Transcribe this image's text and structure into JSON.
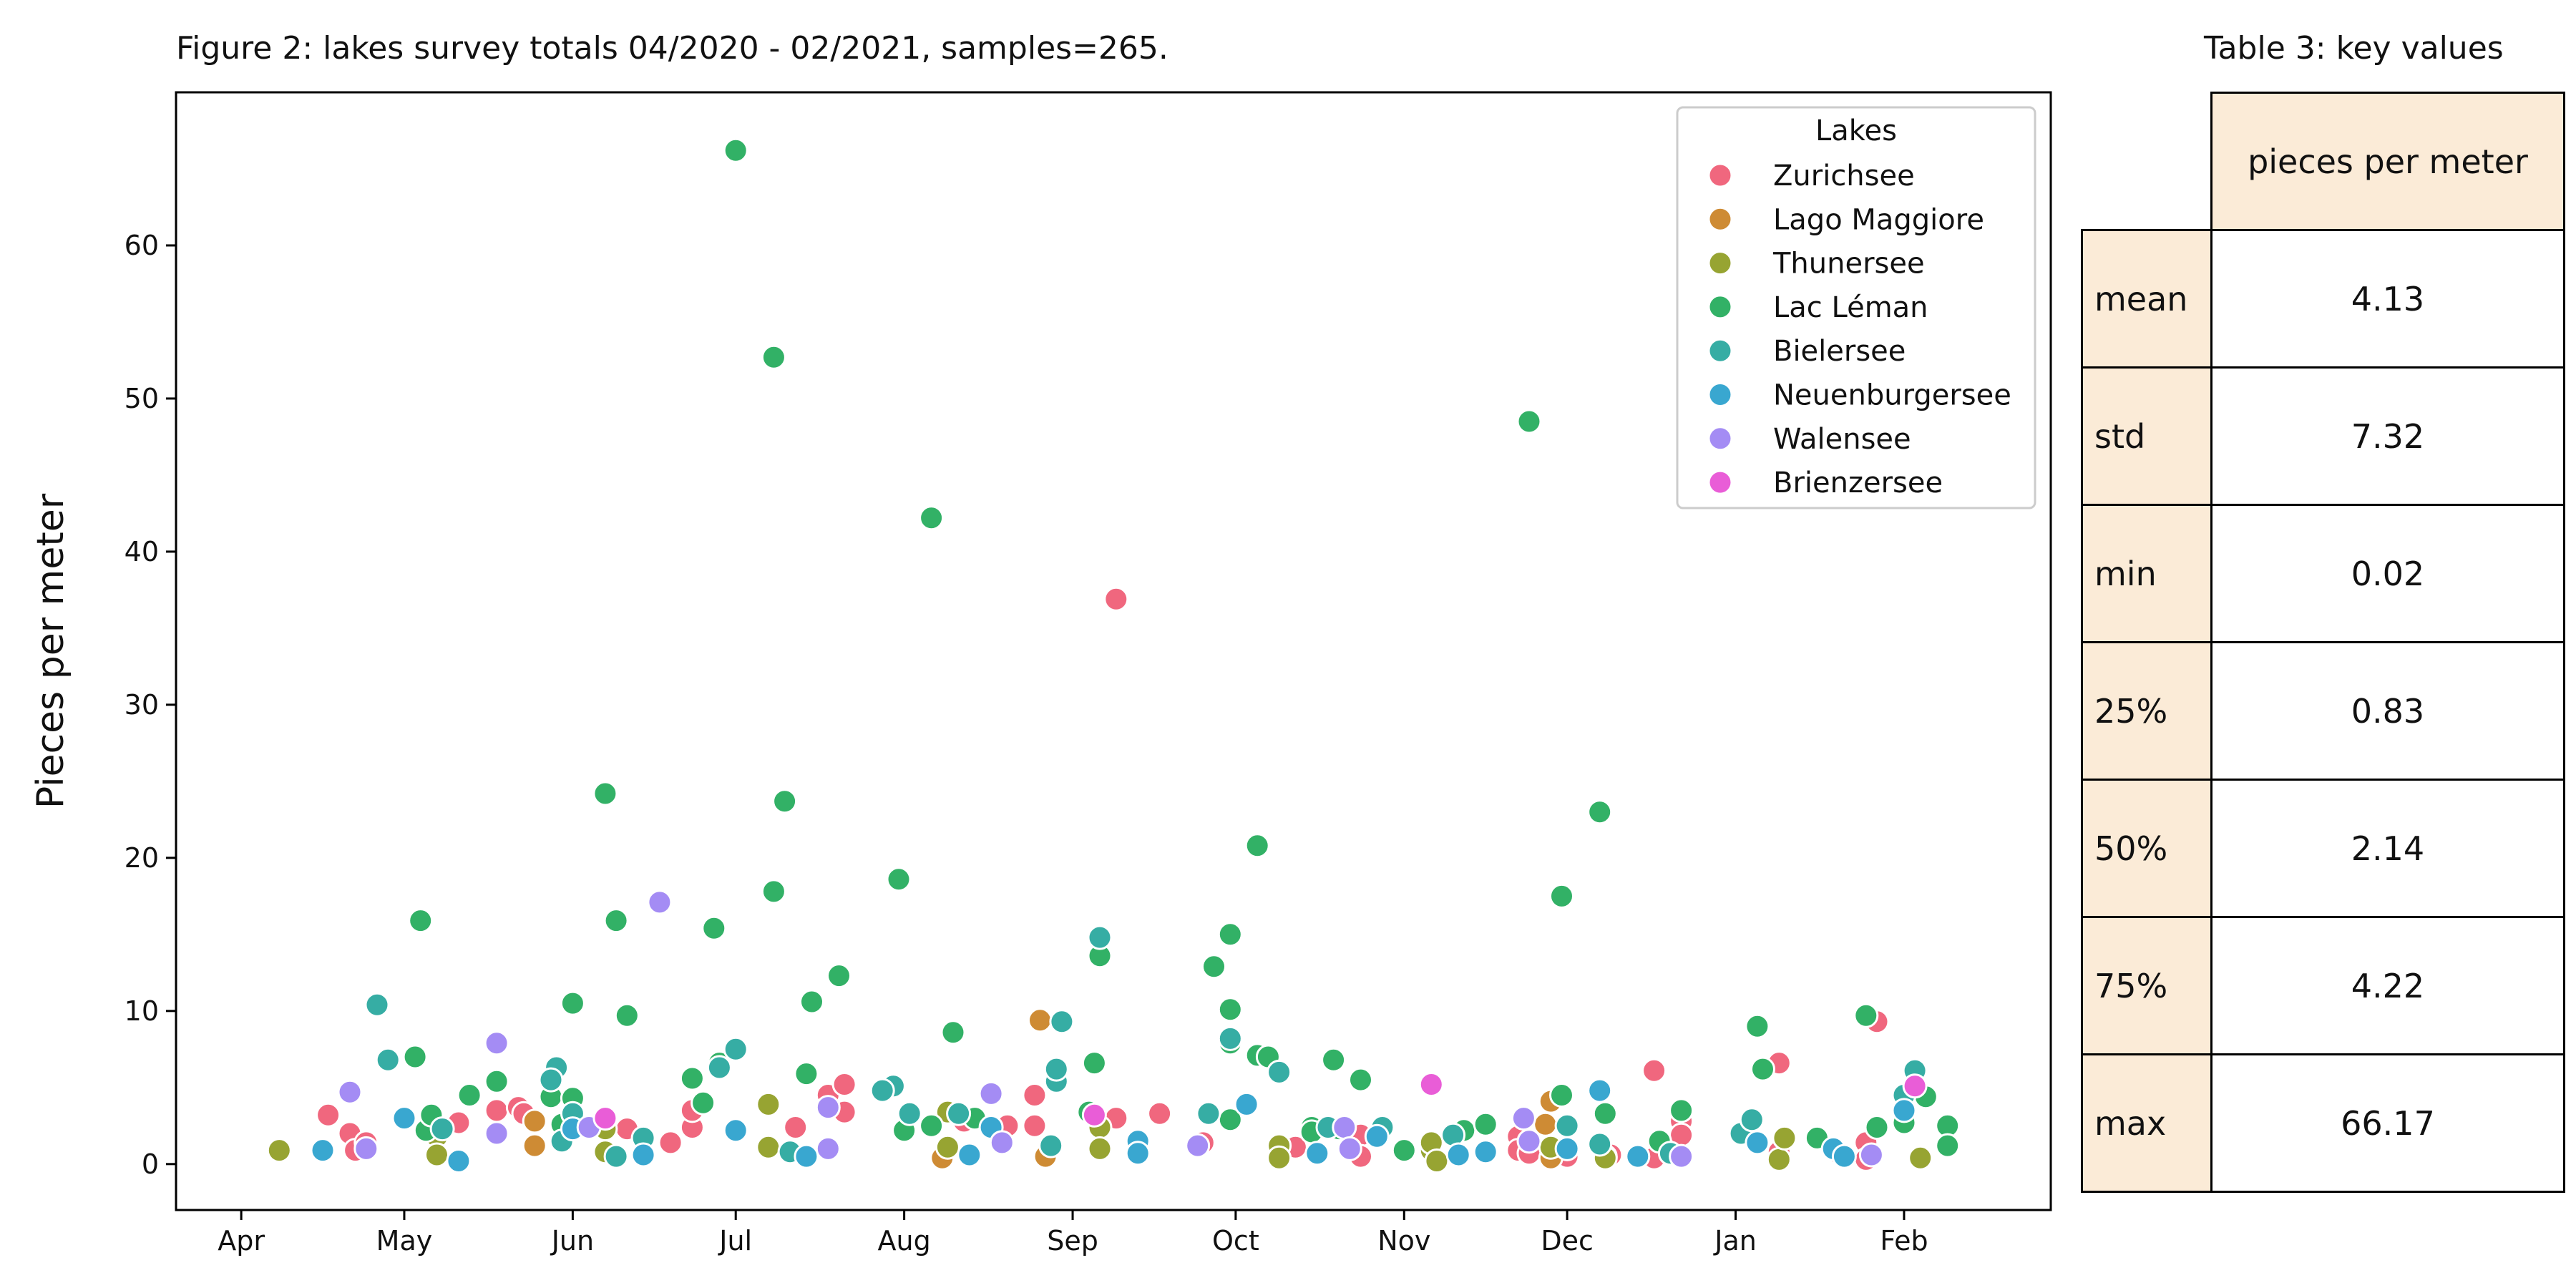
{
  "chart_data": {
    "type": "scatter",
    "title": "Figure 2: lakes survey totals 04/2020 - 02/2021, samples=265.",
    "xlabel": "",
    "ylabel": "Pieces per meter",
    "xlim": [
      "2020-03-20",
      "2021-02-28"
    ],
    "ylim": [
      -3,
      70
    ],
    "x_ticks": [
      {
        "date": "2020-04-01",
        "label": "Apr"
      },
      {
        "date": "2020-05-01",
        "label": "May"
      },
      {
        "date": "2020-06-01",
        "label": "Jun"
      },
      {
        "date": "2020-07-01",
        "label": "Jul"
      },
      {
        "date": "2020-08-01",
        "label": "Aug"
      },
      {
        "date": "2020-09-01",
        "label": "Sep"
      },
      {
        "date": "2020-10-01",
        "label": "Oct"
      },
      {
        "date": "2020-11-01",
        "label": "Nov"
      },
      {
        "date": "2020-12-01",
        "label": "Dec"
      },
      {
        "date": "2021-01-01",
        "label": "Jan"
      },
      {
        "date": "2021-02-01",
        "label": "Feb"
      }
    ],
    "y_ticks": [
      0,
      10,
      20,
      30,
      40,
      50,
      60
    ],
    "grid": false,
    "legend": {
      "title": "Lakes",
      "position": "top-right"
    },
    "series": [
      {
        "name": "Zurichsee",
        "color": "#f0677e",
        "points": [
          [
            "2020-04-17",
            3.2
          ],
          [
            "2020-04-21",
            2.0
          ],
          [
            "2020-04-22",
            0.9
          ],
          [
            "2020-04-24",
            1.4
          ],
          [
            "2020-05-11",
            2.7
          ],
          [
            "2020-05-18",
            3.5
          ],
          [
            "2020-05-22",
            3.7
          ],
          [
            "2020-05-23",
            3.3
          ],
          [
            "2020-06-07",
            2.9
          ],
          [
            "2020-06-11",
            2.3
          ],
          [
            "2020-06-19",
            1.4
          ],
          [
            "2020-06-23",
            2.4
          ],
          [
            "2020-06-23",
            3.5
          ],
          [
            "2020-07-12",
            2.4
          ],
          [
            "2020-07-18",
            4.5
          ],
          [
            "2020-07-21",
            5.2
          ],
          [
            "2020-07-21",
            3.4
          ],
          [
            "2020-08-12",
            2.8
          ],
          [
            "2020-08-20",
            2.5
          ],
          [
            "2020-08-25",
            4.5
          ],
          [
            "2020-08-25",
            2.5
          ],
          [
            "2020-09-09",
            36.9
          ],
          [
            "2020-09-09",
            3.0
          ],
          [
            "2020-09-17",
            3.3
          ],
          [
            "2020-09-25",
            1.4
          ],
          [
            "2020-10-12",
            1.1
          ],
          [
            "2020-10-24",
            1.9
          ],
          [
            "2020-10-24",
            0.5
          ],
          [
            "2020-11-11",
            0.6
          ],
          [
            "2020-11-22",
            1.8
          ],
          [
            "2020-11-22",
            0.9
          ],
          [
            "2020-11-24",
            0.7
          ],
          [
            "2020-12-01",
            0.5
          ],
          [
            "2020-12-09",
            0.6
          ],
          [
            "2020-12-17",
            6.1
          ],
          [
            "2020-12-17",
            0.4
          ],
          [
            "2020-12-22",
            2.8
          ],
          [
            "2020-12-22",
            1.9
          ],
          [
            "2021-01-09",
            6.6
          ],
          [
            "2021-01-09",
            0.8
          ],
          [
            "2021-01-20",
            0.7
          ],
          [
            "2021-01-25",
            1.4
          ],
          [
            "2021-01-25",
            0.3
          ],
          [
            "2021-01-27",
            9.3
          ]
        ]
      },
      {
        "name": "Lago Maggiore",
        "color": "#ce8b34",
        "points": [
          [
            "2020-05-25",
            2.8
          ],
          [
            "2020-05-25",
            1.2
          ],
          [
            "2020-08-08",
            0.4
          ],
          [
            "2020-08-26",
            9.4
          ],
          [
            "2020-08-27",
            0.5
          ],
          [
            "2020-11-27",
            2.6
          ],
          [
            "2020-11-28",
            4.1
          ],
          [
            "2020-11-28",
            0.4
          ],
          [
            "2020-12-08",
            0.5
          ]
        ]
      },
      {
        "name": "Thunersee",
        "color": "#97a432",
        "points": [
          [
            "2020-04-08",
            0.9
          ],
          [
            "2020-05-07",
            1.8
          ],
          [
            "2020-05-07",
            0.6
          ],
          [
            "2020-05-30",
            2.5
          ],
          [
            "2020-06-07",
            2.3
          ],
          [
            "2020-06-07",
            0.8
          ],
          [
            "2020-07-07",
            3.9
          ],
          [
            "2020-07-07",
            1.1
          ],
          [
            "2020-08-09",
            3.4
          ],
          [
            "2020-08-09",
            1.1
          ],
          [
            "2020-09-06",
            2.4
          ],
          [
            "2020-09-06",
            1.0
          ],
          [
            "2020-10-09",
            1.2
          ],
          [
            "2020-10-09",
            0.4
          ],
          [
            "2020-11-06",
            0.9
          ],
          [
            "2020-11-06",
            1.4
          ],
          [
            "2020-11-07",
            0.2
          ],
          [
            "2020-11-28",
            1.1
          ],
          [
            "2020-12-08",
            0.4
          ],
          [
            "2021-01-09",
            0.3
          ],
          [
            "2021-01-10",
            1.7
          ],
          [
            "2021-02-04",
            0.4
          ]
        ]
      },
      {
        "name": "Lac Léman",
        "color": "#32b166",
        "points": [
          [
            "2020-05-04",
            15.9
          ],
          [
            "2020-05-03",
            7.0
          ],
          [
            "2020-05-05",
            2.2
          ],
          [
            "2020-05-06",
            3.2
          ],
          [
            "2020-05-13",
            4.5
          ],
          [
            "2020-05-18",
            5.4
          ],
          [
            "2020-05-28",
            4.4
          ],
          [
            "2020-05-30",
            2.6
          ],
          [
            "2020-06-01",
            10.5
          ],
          [
            "2020-06-01",
            4.3
          ],
          [
            "2020-06-07",
            24.2
          ],
          [
            "2020-06-09",
            15.9
          ],
          [
            "2020-06-11",
            9.7
          ],
          [
            "2020-06-27",
            15.4
          ],
          [
            "2020-06-23",
            5.6
          ],
          [
            "2020-06-25",
            4.0
          ],
          [
            "2020-06-28",
            6.6
          ],
          [
            "2020-07-01",
            66.2
          ],
          [
            "2020-07-08",
            52.7
          ],
          [
            "2020-07-08",
            17.8
          ],
          [
            "2020-07-10",
            23.7
          ],
          [
            "2020-07-15",
            10.6
          ],
          [
            "2020-07-14",
            5.9
          ],
          [
            "2020-07-20",
            12.3
          ],
          [
            "2020-07-31",
            18.6
          ],
          [
            "2020-08-06",
            42.2
          ],
          [
            "2020-08-06",
            2.5
          ],
          [
            "2020-08-01",
            2.2
          ],
          [
            "2020-08-10",
            8.6
          ],
          [
            "2020-08-14",
            3.0
          ],
          [
            "2020-09-04",
            3.4
          ],
          [
            "2020-09-05",
            6.6
          ],
          [
            "2020-09-06",
            13.6
          ],
          [
            "2020-09-27",
            12.9
          ],
          [
            "2020-09-30",
            15.0
          ],
          [
            "2020-09-30",
            10.1
          ],
          [
            "2020-09-30",
            7.9
          ],
          [
            "2020-09-30",
            2.9
          ],
          [
            "2020-10-05",
            7.1
          ],
          [
            "2020-10-05",
            20.8
          ],
          [
            "2020-10-07",
            7.0
          ],
          [
            "2020-10-15",
            2.4
          ],
          [
            "2020-10-15",
            2.1
          ],
          [
            "2020-10-19",
            6.8
          ],
          [
            "2020-10-20",
            2.3
          ],
          [
            "2020-10-24",
            5.5
          ],
          [
            "2020-11-01",
            0.9
          ],
          [
            "2020-11-12",
            2.2
          ],
          [
            "2020-11-16",
            2.6
          ],
          [
            "2020-11-24",
            48.5
          ],
          [
            "2020-11-30",
            17.5
          ],
          [
            "2020-11-30",
            4.5
          ],
          [
            "2020-12-07",
            23.0
          ],
          [
            "2020-12-08",
            3.3
          ],
          [
            "2020-12-18",
            1.5
          ],
          [
            "2020-12-22",
            3.5
          ],
          [
            "2021-01-05",
            9.0
          ],
          [
            "2021-01-06",
            6.2
          ],
          [
            "2021-01-16",
            1.7
          ],
          [
            "2021-01-25",
            9.7
          ],
          [
            "2021-01-27",
            2.4
          ],
          [
            "2021-02-01",
            2.7
          ],
          [
            "2021-02-05",
            4.4
          ],
          [
            "2021-02-09",
            2.5
          ],
          [
            "2021-02-09",
            1.2
          ]
        ]
      },
      {
        "name": "Bielersee",
        "color": "#36ada4",
        "points": [
          [
            "2020-04-26",
            10.4
          ],
          [
            "2020-04-28",
            6.8
          ],
          [
            "2020-05-08",
            2.3
          ],
          [
            "2020-05-29",
            6.3
          ],
          [
            "2020-05-28",
            5.5
          ],
          [
            "2020-05-30",
            1.5
          ],
          [
            "2020-06-01",
            3.3
          ],
          [
            "2020-06-09",
            0.5
          ],
          [
            "2020-06-14",
            1.7
          ],
          [
            "2020-06-28",
            6.3
          ],
          [
            "2020-07-01",
            7.5
          ],
          [
            "2020-07-11",
            0.8
          ],
          [
            "2020-07-30",
            5.1
          ],
          [
            "2020-07-28",
            4.8
          ],
          [
            "2020-08-02",
            3.3
          ],
          [
            "2020-08-11",
            3.3
          ],
          [
            "2020-08-29",
            5.4
          ],
          [
            "2020-08-29",
            6.2
          ],
          [
            "2020-08-30",
            9.3
          ],
          [
            "2020-08-28",
            1.2
          ],
          [
            "2020-09-06",
            14.8
          ],
          [
            "2020-09-26",
            3.3
          ],
          [
            "2020-09-30",
            8.2
          ],
          [
            "2020-10-09",
            6.0
          ],
          [
            "2020-10-18",
            2.4
          ],
          [
            "2020-10-28",
            2.4
          ],
          [
            "2020-11-10",
            1.9
          ],
          [
            "2020-12-07",
            1.3
          ],
          [
            "2020-12-01",
            2.5
          ],
          [
            "2020-12-20",
            0.7
          ],
          [
            "2021-01-02",
            2.0
          ],
          [
            "2021-01-04",
            2.9
          ],
          [
            "2021-02-01",
            4.5
          ],
          [
            "2021-02-03",
            6.1
          ]
        ]
      },
      {
        "name": "Neuenburgersee",
        "color": "#39a7d0",
        "points": [
          [
            "2020-04-16",
            0.9
          ],
          [
            "2020-05-01",
            3.0
          ],
          [
            "2020-05-11",
            0.2
          ],
          [
            "2020-06-01",
            2.3
          ],
          [
            "2020-06-14",
            0.6
          ],
          [
            "2020-07-01",
            2.2
          ],
          [
            "2020-07-14",
            0.5
          ],
          [
            "2020-08-13",
            0.6
          ],
          [
            "2020-08-17",
            2.4
          ],
          [
            "2020-09-13",
            1.5
          ],
          [
            "2020-09-13",
            0.7
          ],
          [
            "2020-10-03",
            3.9
          ],
          [
            "2020-10-16",
            0.7
          ],
          [
            "2020-10-27",
            1.8
          ],
          [
            "2020-11-11",
            0.6
          ],
          [
            "2020-11-16",
            0.8
          ],
          [
            "2020-12-01",
            1.0
          ],
          [
            "2020-12-07",
            4.8
          ],
          [
            "2020-12-14",
            0.5
          ],
          [
            "2021-01-05",
            1.4
          ],
          [
            "2021-01-19",
            1.0
          ],
          [
            "2021-01-21",
            0.5
          ],
          [
            "2021-02-01",
            3.5
          ]
        ]
      },
      {
        "name": "Walensee",
        "color": "#a48cf4",
        "points": [
          [
            "2020-04-21",
            4.7
          ],
          [
            "2020-04-24",
            1.0
          ],
          [
            "2020-05-18",
            7.9
          ],
          [
            "2020-05-18",
            2.0
          ],
          [
            "2020-06-04",
            2.4
          ],
          [
            "2020-06-17",
            17.1
          ],
          [
            "2020-07-18",
            3.7
          ],
          [
            "2020-07-18",
            1.0
          ],
          [
            "2020-08-17",
            4.6
          ],
          [
            "2020-08-19",
            1.4
          ],
          [
            "2020-09-24",
            1.2
          ],
          [
            "2020-10-21",
            2.4
          ],
          [
            "2020-10-22",
            1.0
          ],
          [
            "2020-11-23",
            3.0
          ],
          [
            "2020-11-24",
            1.5
          ],
          [
            "2020-12-22",
            0.5
          ],
          [
            "2021-01-26",
            0.6
          ]
        ]
      },
      {
        "name": "Brienzersee",
        "color": "#e95dd7",
        "points": [
          [
            "2020-06-07",
            3.0
          ],
          [
            "2020-09-05",
            3.2
          ],
          [
            "2020-11-06",
            5.2
          ],
          [
            "2021-02-03",
            5.1
          ]
        ]
      }
    ]
  },
  "table": {
    "title": "Table 3: key values",
    "header": "pieces per meter",
    "rows": [
      {
        "label": "mean",
        "value": "4.13"
      },
      {
        "label": "std",
        "value": "7.32"
      },
      {
        "label": "min",
        "value": "0.02"
      },
      {
        "label": "25%",
        "value": "0.83"
      },
      {
        "label": "50%",
        "value": "2.14"
      },
      {
        "label": "75%",
        "value": "4.22"
      },
      {
        "label": "max",
        "value": "66.17"
      }
    ]
  }
}
